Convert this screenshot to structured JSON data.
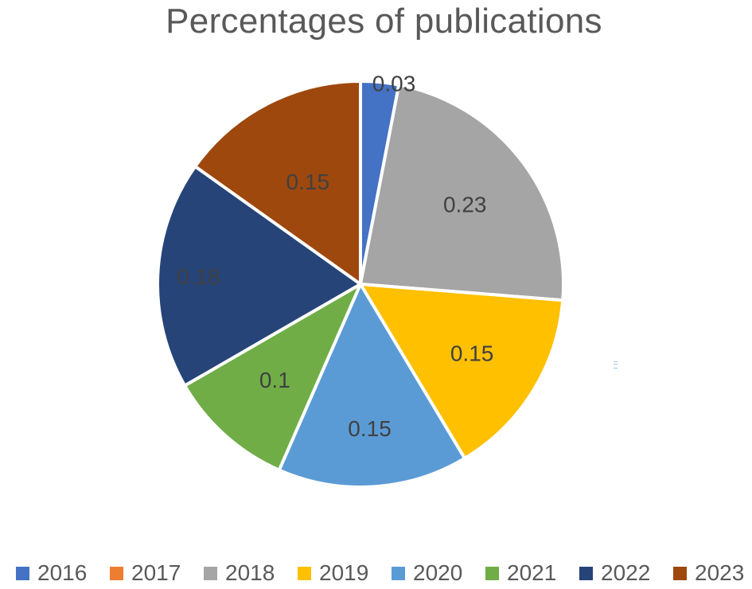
{
  "chart_data": {
    "type": "pie",
    "title": "Percentages of publications",
    "categories": [
      "2016",
      "2017",
      "2018",
      "2019",
      "2020",
      "2021",
      "2022",
      "2023"
    ],
    "values": [
      0.03,
      0,
      0.23,
      0.15,
      0.15,
      0.1,
      0.18,
      0.15
    ],
    "data_labels": [
      "0.03",
      "",
      "0.23",
      "0.15",
      "0.15",
      "0.1",
      "0.18",
      "0.15"
    ],
    "colors": [
      "#4472c4",
      "#ed7d31",
      "#a5a5a5",
      "#ffc000",
      "#5b9bd5",
      "#70ad47",
      "#264478",
      "#9e480e"
    ],
    "legend_position": "bottom",
    "start_angle_deg": 0,
    "direction": "clockwise"
  }
}
